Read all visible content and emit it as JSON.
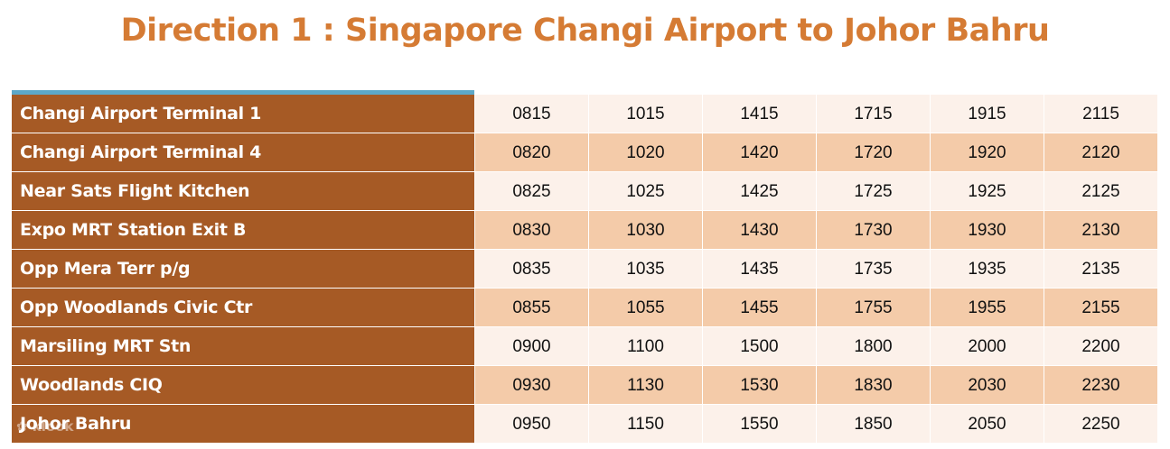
{
  "title": "Direction 1 : Singapore Changi Airport to Johor Bahru",
  "rows": [
    {
      "stop": "Changi Airport Terminal 1",
      "times": [
        "0815",
        "1015",
        "1415",
        "1715",
        "1915",
        "2115"
      ]
    },
    {
      "stop": "Changi Airport Terminal 4",
      "times": [
        "0820",
        "1020",
        "1420",
        "1720",
        "1920",
        "2120"
      ]
    },
    {
      "stop": "Near Sats Flight Kitchen",
      "times": [
        "0825",
        "1025",
        "1425",
        "1725",
        "1925",
        "2125"
      ]
    },
    {
      "stop": "Expo MRT Station Exit B",
      "times": [
        "0830",
        "1030",
        "1430",
        "1730",
        "1930",
        "2130"
      ]
    },
    {
      "stop": "Opp Mera Terr p/g",
      "times": [
        "0835",
        "1035",
        "1435",
        "1735",
        "1935",
        "2135"
      ]
    },
    {
      "stop": "Opp Woodlands Civic Ctr",
      "times": [
        "0855",
        "1055",
        "1455",
        "1755",
        "1955",
        "2155"
      ]
    },
    {
      "stop": "Marsiling MRT Stn",
      "times": [
        "0900",
        "1100",
        "1500",
        "1800",
        "2000",
        "2200"
      ]
    },
    {
      "stop": "Woodlands CIQ",
      "times": [
        "0930",
        "1130",
        "1530",
        "1830",
        "2030",
        "2230"
      ]
    },
    {
      "stop": "Johor Bahru",
      "times": [
        "0950",
        "1150",
        "1550",
        "1850",
        "2050",
        "2250"
      ]
    }
  ],
  "watermark": "klook",
  "colors": {
    "title": "#D57B34",
    "stop_bg": "#A65A25",
    "row_light": "#FCF1EA",
    "row_dark": "#F4CBA9",
    "header_line": "#5DA8C8"
  }
}
